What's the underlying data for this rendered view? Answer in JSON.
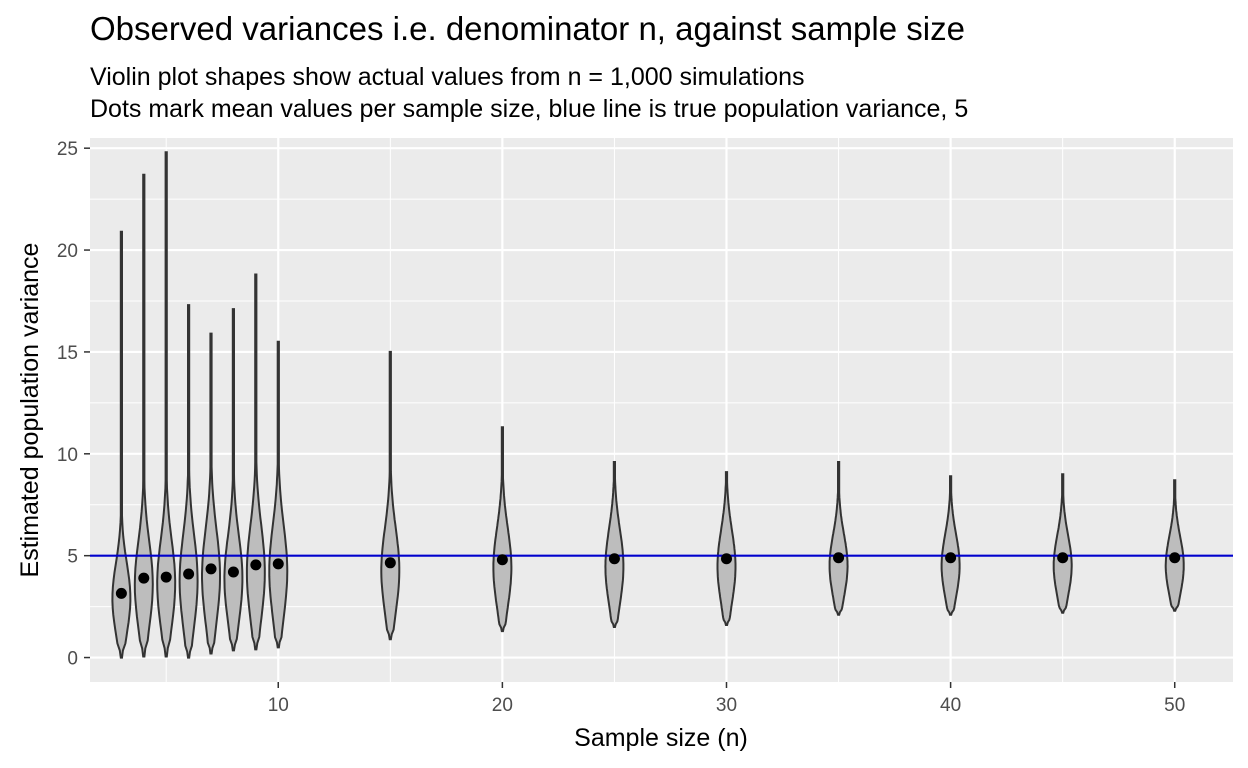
{
  "chart_data": {
    "type": "violin",
    "title": "Observed variances i.e. denominator n, against sample size",
    "subtitle": [
      "Violin plot shapes show actual values from n = 1,000 simulations",
      "Dots mark mean values per sample size, blue line is true population variance, 5"
    ],
    "xlabel": "Sample size (n)",
    "ylabel": "Estimated population variance",
    "xlim": [
      1.6,
      52.6
    ],
    "ylim": [
      -1.2,
      25.5
    ],
    "x_ticks": [
      10,
      20,
      30,
      40,
      50
    ],
    "y_ticks": [
      0,
      5,
      10,
      15,
      20,
      25
    ],
    "reference_line": {
      "y": 5,
      "color": "#0000cc"
    },
    "violin_fill": "#bdbdbd",
    "violin_outline": "#333333",
    "mean_dot_color": "#000000",
    "panel_background": "#ebebeb",
    "grid": true,
    "groups": [
      {
        "x": 3,
        "mean": 3.15,
        "min": 0.0,
        "max": 20.9
      },
      {
        "x": 4,
        "mean": 3.9,
        "min": 0.05,
        "max": 23.7
      },
      {
        "x": 5,
        "mean": 3.95,
        "min": 0.05,
        "max": 24.8
      },
      {
        "x": 6,
        "mean": 4.1,
        "min": 0.0,
        "max": 17.3
      },
      {
        "x": 7,
        "mean": 4.35,
        "min": 0.2,
        "max": 15.9
      },
      {
        "x": 8,
        "mean": 4.2,
        "min": 0.35,
        "max": 17.1
      },
      {
        "x": 9,
        "mean": 4.55,
        "min": 0.4,
        "max": 18.8
      },
      {
        "x": 10,
        "mean": 4.6,
        "min": 0.5,
        "max": 15.5
      },
      {
        "x": 15,
        "mean": 4.65,
        "min": 0.9,
        "max": 15.0
      },
      {
        "x": 20,
        "mean": 4.8,
        "min": 1.3,
        "max": 11.3
      },
      {
        "x": 25,
        "mean": 4.85,
        "min": 1.5,
        "max": 9.6
      },
      {
        "x": 30,
        "mean": 4.85,
        "min": 1.6,
        "max": 9.1
      },
      {
        "x": 35,
        "mean": 4.9,
        "min": 2.1,
        "max": 9.6
      },
      {
        "x": 40,
        "mean": 4.9,
        "min": 2.1,
        "max": 8.9
      },
      {
        "x": 45,
        "mean": 4.9,
        "min": 2.2,
        "max": 9.0
      },
      {
        "x": 50,
        "mean": 4.9,
        "min": 2.3,
        "max": 8.7
      }
    ]
  }
}
